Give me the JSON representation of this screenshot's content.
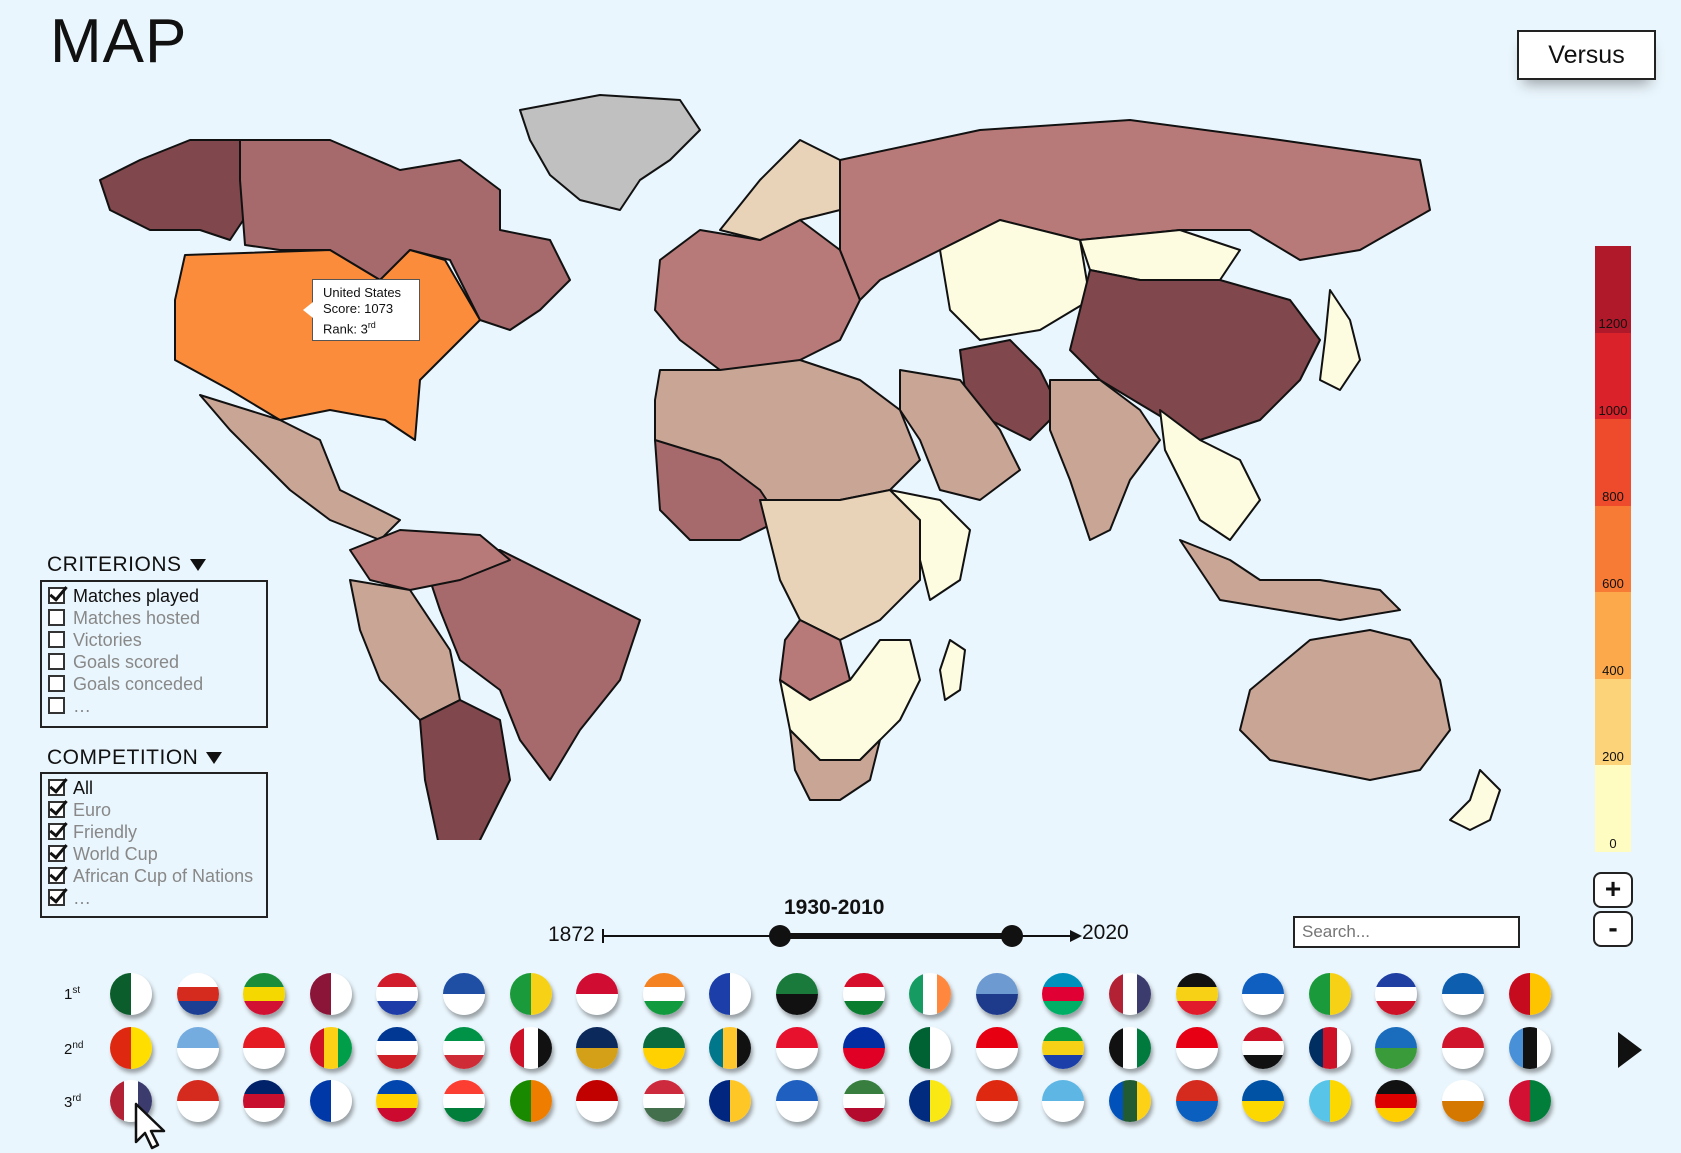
{
  "header": {
    "title": "MAP",
    "versus_label": "Versus"
  },
  "tooltip": {
    "country": "United States",
    "score_line": "Score: 1073",
    "rank_prefix": "Rank: 3",
    "rank_suffix": "rd"
  },
  "legend": {
    "ticks": [
      "1200",
      "1000",
      "800",
      "600",
      "400",
      "200",
      "0"
    ],
    "colors": [
      "#b0192a",
      "#d9222a",
      "#ee4a2c",
      "#f77a35",
      "#fba94a",
      "#fdd37a",
      "#fefcc0"
    ]
  },
  "zoom": {
    "in_label": "+",
    "out_label": "-"
  },
  "criterions": {
    "title": "CRITERIONS",
    "items": [
      {
        "label": "Matches played",
        "checked": true
      },
      {
        "label": "Matches hosted",
        "checked": false
      },
      {
        "label": "Victories",
        "checked": false
      },
      {
        "label": "Goals scored",
        "checked": false
      },
      {
        "label": "Goals conceded",
        "checked": false
      },
      {
        "label": "…",
        "checked": false
      }
    ]
  },
  "competition": {
    "title": "COMPETITION",
    "items": [
      {
        "label": "All",
        "checked": true
      },
      {
        "label": "Euro",
        "checked": true
      },
      {
        "label": "Friendly",
        "checked": true
      },
      {
        "label": "World Cup",
        "checked": true
      },
      {
        "label": "African Cup of Nations",
        "checked": true
      },
      {
        "label": "…",
        "checked": true
      }
    ]
  },
  "timeline": {
    "start": "1872",
    "end": "2020",
    "range_label": "1930-2010"
  },
  "search": {
    "placeholder": "Search..."
  },
  "ranks": {
    "first": {
      "num": "1",
      "suffix": "st"
    },
    "second": {
      "num": "2",
      "suffix": "nd"
    },
    "third": {
      "num": "3",
      "suffix": "rd"
    }
  },
  "colors": {
    "background": "#eaf6fd",
    "highlight": "#fb8c3c",
    "dark": "#80474c",
    "medium": "#a66a6c",
    "rose": "#b87a78",
    "tan": "#c9a596",
    "beige": "#e8d2b8",
    "cream": "#fdfbe0",
    "greenland": "#c0c0c0"
  }
}
